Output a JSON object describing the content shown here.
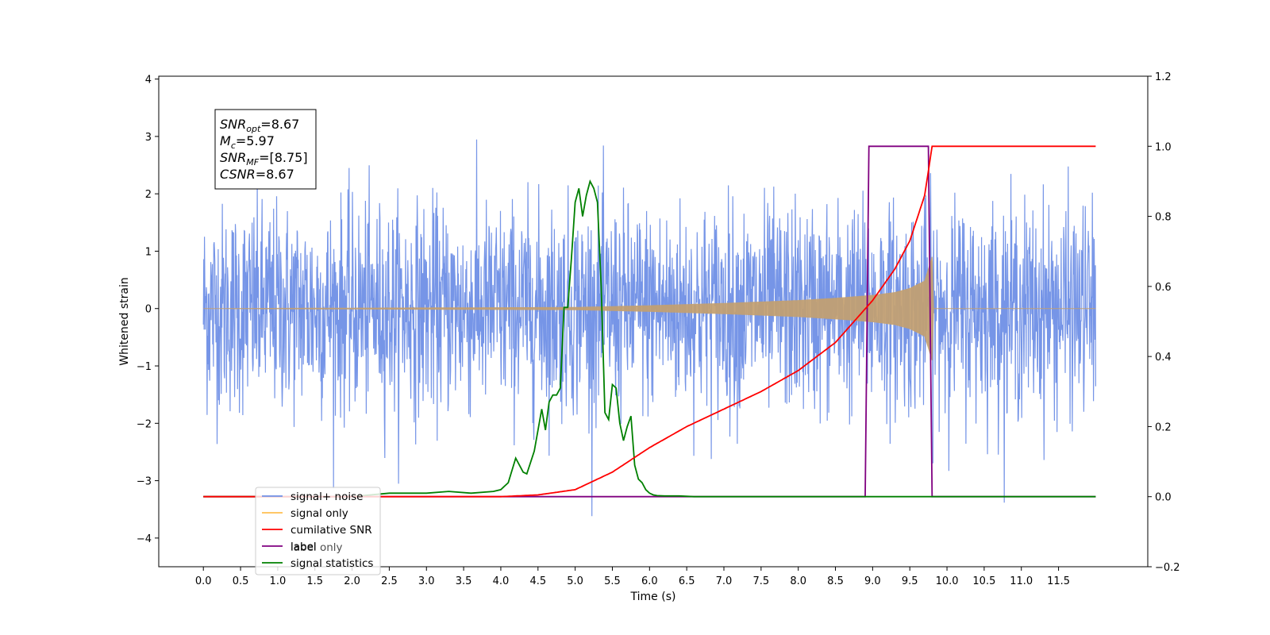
{
  "chart_data": {
    "type": "line",
    "xlabel": "Time (s)",
    "ylabel": "Whitened strain",
    "xlim": [
      -0.6,
      12.7
    ],
    "ylim": [
      -4.5,
      4.05
    ],
    "y2lim": [
      -0.2,
      1.2
    ],
    "x_ticks": [
      "0.0",
      "0.5",
      "1.0",
      "1.5",
      "2.0",
      "2.5",
      "3.0",
      "3.5",
      "4.0",
      "4.5",
      "5.0",
      "5.5",
      "6.0",
      "6.5",
      "7.0",
      "7.5",
      "8.0",
      "8.5",
      "9.0",
      "9.5",
      "10.0",
      "10.5",
      "11.0",
      "11.5"
    ],
    "y_ticks": [
      "4",
      "3",
      "2",
      "1",
      "0",
      "−1",
      "−2",
      "−3",
      "−4"
    ],
    "y2_ticks": [
      "1.2",
      "1.0",
      "0.8",
      "0.6",
      "0.4",
      "0.2",
      "0.0",
      "−0.2"
    ],
    "legend": {
      "location": "lower-left",
      "entries": [
        {
          "label": "signal+ noise",
          "color": "#6f8fe6"
        },
        {
          "label": "signal only",
          "color": "#ffbf50"
        },
        {
          "label": "cumilative SNR",
          "color": "#ff0000"
        },
        {
          "label": "label",
          "color": "#800080"
        },
        {
          "label": "signal statistics",
          "color": "#008000"
        }
      ],
      "occluded_text": "label only"
    },
    "annotation": {
      "lines": [
        {
          "name": "SNR",
          "sub": "opt",
          "value": "=8.67"
        },
        {
          "name": "M",
          "sub": "c",
          "value": "=5.97"
        },
        {
          "name": "SNR",
          "sub": "MF",
          "value": "=[8.75]"
        },
        {
          "name": "CSNR",
          "sub": "",
          "value": "=8.67"
        }
      ]
    },
    "series": [
      {
        "name": "signal+ noise",
        "axis": "left",
        "description": "whitened noise, roughly ±2.2 with spikes to ±3.6, from t=0 to t=12",
        "x_range": [
          0,
          12
        ],
        "amplitude": 2.2
      },
      {
        "name": "signal only",
        "axis": "left",
        "description": "chirp signal growing from t≈5 to merger at t≈9.8",
        "envelope": {
          "x": [
            0,
            5.0,
            6.0,
            7.0,
            8.0,
            8.5,
            9.0,
            9.3,
            9.5,
            9.7,
            9.8,
            9.82,
            12.0
          ],
          "y": [
            0.0,
            0.02,
            0.05,
            0.09,
            0.14,
            0.18,
            0.23,
            0.28,
            0.35,
            0.48,
            0.9,
            0.0,
            0.0
          ]
        }
      },
      {
        "name": "cumilative SNR",
        "axis": "right",
        "x": [
          0,
          4.0,
          4.5,
          5.0,
          5.5,
          6.0,
          6.5,
          7.0,
          7.5,
          8.0,
          8.5,
          9.0,
          9.3,
          9.5,
          9.7,
          9.8,
          12.0
        ],
        "y": [
          0.0,
          0.0,
          0.005,
          0.02,
          0.07,
          0.14,
          0.2,
          0.25,
          0.3,
          0.36,
          0.44,
          0.56,
          0.65,
          0.73,
          0.86,
          1.0,
          1.0
        ]
      },
      {
        "name": "label",
        "axis": "right",
        "x": [
          0,
          8.9,
          8.95,
          9.75,
          9.8,
          12.0
        ],
        "y": [
          0.0,
          0.0,
          1.0,
          1.0,
          0.0,
          0.0
        ]
      },
      {
        "name": "signal statistics",
        "axis": "right",
        "x": [
          0,
          2.0,
          2.5,
          3.0,
          3.3,
          3.6,
          3.9,
          4.0,
          4.1,
          4.2,
          4.3,
          4.35,
          4.45,
          4.55,
          4.6,
          4.65,
          4.7,
          4.75,
          4.8,
          4.85,
          4.9,
          4.95,
          5.0,
          5.05,
          5.1,
          5.15,
          5.2,
          5.25,
          5.3,
          5.35,
          5.4,
          5.45,
          5.5,
          5.55,
          5.6,
          5.65,
          5.7,
          5.75,
          5.8,
          5.85,
          5.9,
          5.95,
          6.0,
          6.05,
          6.1,
          6.2,
          6.4,
          6.6,
          7.0,
          7.5,
          12.0
        ],
        "y": [
          0.0,
          0.0,
          0.01,
          0.01,
          0.015,
          0.01,
          0.015,
          0.02,
          0.04,
          0.11,
          0.07,
          0.065,
          0.13,
          0.25,
          0.19,
          0.27,
          0.29,
          0.29,
          0.31,
          0.54,
          0.54,
          0.68,
          0.84,
          0.88,
          0.8,
          0.86,
          0.9,
          0.88,
          0.84,
          0.6,
          0.24,
          0.22,
          0.32,
          0.31,
          0.21,
          0.16,
          0.2,
          0.23,
          0.09,
          0.05,
          0.04,
          0.02,
          0.01,
          0.005,
          0.003,
          0.002,
          0.002,
          0.0,
          0.0,
          0.0,
          0.0
        ]
      }
    ]
  }
}
